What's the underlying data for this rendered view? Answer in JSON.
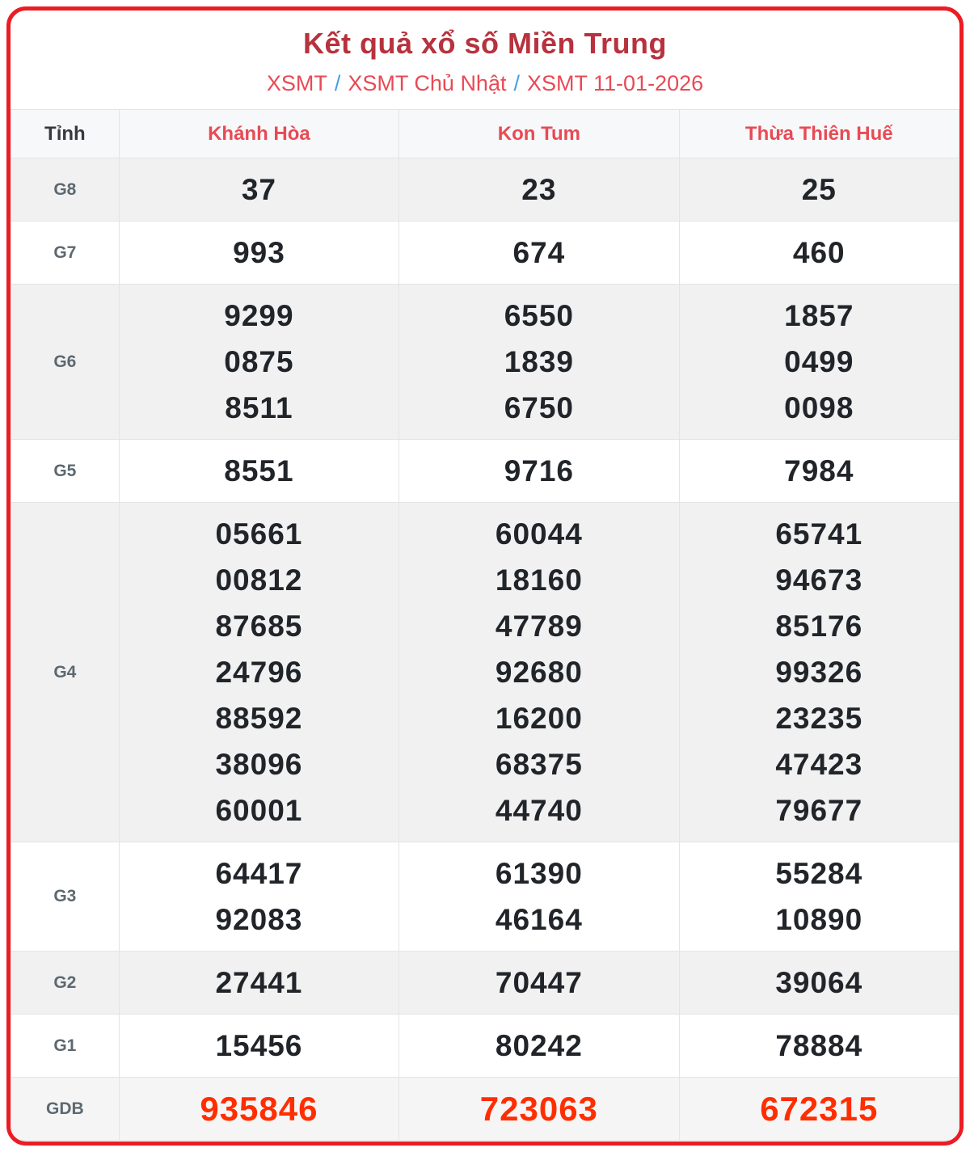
{
  "page": {
    "title": "Kết quả xổ số Miền Trung",
    "breadcrumb_separator": "/",
    "breadcrumb": [
      {
        "label": "XSMT"
      },
      {
        "label": "XSMT Chủ Nhật"
      },
      {
        "label": "XSMT 11-01-2026"
      }
    ]
  },
  "colors": {
    "card_border_red": "#ec1c24",
    "title_red": "#b7323e",
    "link_red": "#e84a55",
    "separator_blue": "#42a0e4",
    "number_dark": "#212529",
    "special_prize_red": "#ff2e00",
    "prize_label_gray": "#5d686f",
    "shaded_row_gray": "#f1f1f2"
  },
  "table": {
    "header": {
      "province_col": "Tỉnh",
      "provinces": [
        "Khánh Hòa",
        "Kon Tum",
        "Thừa Thiên Huế"
      ]
    },
    "rows": [
      {
        "label": "G8",
        "shaded": true,
        "special": false,
        "values": [
          [
            "37"
          ],
          [
            "23"
          ],
          [
            "25"
          ]
        ]
      },
      {
        "label": "G7",
        "shaded": false,
        "special": false,
        "values": [
          [
            "993"
          ],
          [
            "674"
          ],
          [
            "460"
          ]
        ]
      },
      {
        "label": "G6",
        "shaded": true,
        "special": false,
        "values": [
          [
            "9299",
            "0875",
            "8511"
          ],
          [
            "6550",
            "1839",
            "6750"
          ],
          [
            "1857",
            "0499",
            "0098"
          ]
        ]
      },
      {
        "label": "G5",
        "shaded": false,
        "special": false,
        "values": [
          [
            "8551"
          ],
          [
            "9716"
          ],
          [
            "7984"
          ]
        ]
      },
      {
        "label": "G4",
        "shaded": true,
        "special": false,
        "values": [
          [
            "05661",
            "00812",
            "87685",
            "24796",
            "88592",
            "38096",
            "60001"
          ],
          [
            "60044",
            "18160",
            "47789",
            "92680",
            "16200",
            "68375",
            "44740"
          ],
          [
            "65741",
            "94673",
            "85176",
            "99326",
            "23235",
            "47423",
            "79677"
          ]
        ]
      },
      {
        "label": "G3",
        "shaded": false,
        "special": false,
        "values": [
          [
            "64417",
            "92083"
          ],
          [
            "61390",
            "46164"
          ],
          [
            "55284",
            "10890"
          ]
        ]
      },
      {
        "label": "G2",
        "shaded": true,
        "special": false,
        "values": [
          [
            "27441"
          ],
          [
            "70447"
          ],
          [
            "39064"
          ]
        ]
      },
      {
        "label": "G1",
        "shaded": false,
        "special": false,
        "values": [
          [
            "15456"
          ],
          [
            "80242"
          ],
          [
            "78884"
          ]
        ]
      },
      {
        "label": "GDB",
        "shaded": false,
        "special": true,
        "values": [
          [
            "935846"
          ],
          [
            "723063"
          ],
          [
            "672315"
          ]
        ]
      }
    ]
  }
}
